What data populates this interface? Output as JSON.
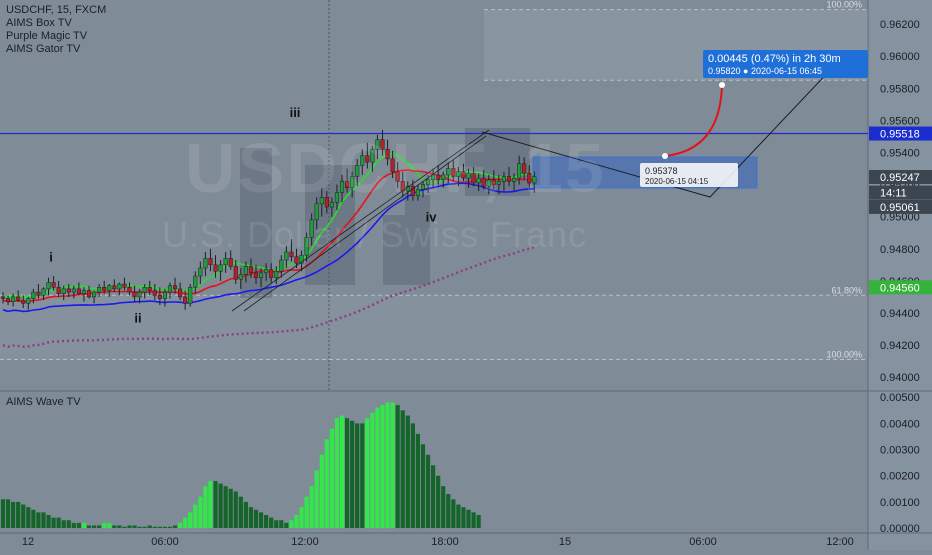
{
  "legend": {
    "symbol_line": "USDCHF, 15, FXCM",
    "indicators": [
      "AIMS Box TV",
      "Purple Magic TV",
      "AIMS Gator TV"
    ]
  },
  "watermark": {
    "symbol": "USDCHF, 15",
    "name": "U.S. Dollar / Swiss Franc"
  },
  "indicator_title": "AIMS Wave TV",
  "colors": {
    "background": "#7f8c98",
    "up_candle": "#1f9d3a",
    "down_candle": "#b61f25",
    "line_green": "#2bdc2b",
    "line_red": "#e0141a",
    "line_blue": "#1a1aef",
    "dotted_purple": "#8a3f82",
    "horizontal_line": "#1b2dcf",
    "hist_bright": "#33e64a",
    "hist_dark": "#15652a",
    "price_tag_blue": "#1f6fd8"
  },
  "chart_data": [
    {
      "type": "candlestick",
      "title": "USDCHF, 15, FXCM",
      "ylim": [
        0.9392,
        0.9635
      ],
      "y_ticks": [
        "0.96200",
        "0.96000",
        "0.95800",
        "0.95600",
        "0.95400",
        "0.95200",
        "0.95000",
        "0.94800",
        "0.94600",
        "0.94400",
        "0.94200",
        "0.94000"
      ],
      "x_ticks": [
        "12",
        "06:00",
        "12:00",
        "18:00",
        "15",
        "06:00",
        "12:00"
      ],
      "price_labels": [
        {
          "text": "0.95518",
          "value": 0.95518,
          "style": "blue-line"
        },
        {
          "text": "0.95247",
          "value": 0.95247,
          "style": "dark"
        },
        {
          "text": "14:11",
          "value": 0.9515,
          "style": "dark"
        },
        {
          "text": "0.95061",
          "value": 0.95061,
          "style": "dark"
        },
        {
          "text": "0.94560",
          "value": 0.9456,
          "style": "green"
        }
      ],
      "fib_levels": [
        {
          "label": "100.00%",
          "value": 0.9629
        },
        {
          "label": "61.80%",
          "value": 0.9585
        },
        {
          "label": "61.80%",
          "value": 0.9451
        },
        {
          "label": "100.00%",
          "value": 0.9411
        }
      ],
      "wave_labels": [
        {
          "text": "i",
          "x": 48,
          "y": 0.9472
        },
        {
          "text": "ii",
          "x": 135,
          "y": 0.9434
        },
        {
          "text": "iii",
          "x": 292,
          "y": 0.9562
        },
        {
          "text": "iv",
          "x": 428,
          "y": 0.9497
        }
      ],
      "projection_label": "0.00445 (0.47%) in 2h 30m",
      "projection_sublabel": "0.95820 ● 2020-06-15 06:45",
      "box_label": "0.95378",
      "box_sublabel": "2020-06-15 04:15",
      "horizontal_line": 0.95518,
      "crosshair_x": 329,
      "candles": [
        [
          0.945,
          0.9453,
          0.9446,
          0.9449
        ],
        [
          0.9449,
          0.9451,
          0.9445,
          0.9447
        ],
        [
          0.9447,
          0.9452,
          0.9444,
          0.945
        ],
        [
          0.945,
          0.9454,
          0.9447,
          0.9448
        ],
        [
          0.9448,
          0.9451,
          0.9443,
          0.9446
        ],
        [
          0.9446,
          0.945,
          0.9442,
          0.9449
        ],
        [
          0.9449,
          0.9455,
          0.9446,
          0.9453
        ],
        [
          0.9453,
          0.9458,
          0.9449,
          0.9451
        ],
        [
          0.9451,
          0.9456,
          0.9448,
          0.9455
        ],
        [
          0.9455,
          0.9462,
          0.9451,
          0.9459
        ],
        [
          0.9459,
          0.9463,
          0.9454,
          0.9456
        ],
        [
          0.9456,
          0.946,
          0.945,
          0.9452
        ],
        [
          0.9452,
          0.9457,
          0.9448,
          0.9455
        ],
        [
          0.9455,
          0.9458,
          0.945,
          0.9453
        ],
        [
          0.9453,
          0.9457,
          0.9449,
          0.9455
        ],
        [
          0.9455,
          0.9459,
          0.9451,
          0.9452
        ],
        [
          0.9452,
          0.9456,
          0.9447,
          0.9454
        ],
        [
          0.9454,
          0.9457,
          0.9449,
          0.945
        ],
        [
          0.945,
          0.9454,
          0.9446,
          0.9453
        ],
        [
          0.9453,
          0.9458,
          0.945,
          0.9456
        ],
        [
          0.9456,
          0.946,
          0.9452,
          0.9454
        ],
        [
          0.9454,
          0.9458,
          0.945,
          0.9457
        ],
        [
          0.9457,
          0.9461,
          0.9453,
          0.9455
        ],
        [
          0.9455,
          0.9459,
          0.9451,
          0.9458
        ],
        [
          0.9458,
          0.9462,
          0.9454,
          0.9456
        ],
        [
          0.9456,
          0.9459,
          0.9451,
          0.9453
        ],
        [
          0.9453,
          0.9457,
          0.9447,
          0.945
        ],
        [
          0.945,
          0.9455,
          0.9446,
          0.9453
        ],
        [
          0.9453,
          0.9458,
          0.9449,
          0.9456
        ],
        [
          0.9456,
          0.946,
          0.9451,
          0.9454
        ],
        [
          0.9454,
          0.9458,
          0.9448,
          0.9451
        ],
        [
          0.9451,
          0.9456,
          0.9445,
          0.9449
        ],
        [
          0.9449,
          0.9455,
          0.9444,
          0.9453
        ],
        [
          0.9453,
          0.9459,
          0.9449,
          0.9457
        ],
        [
          0.9457,
          0.9462,
          0.9452,
          0.9455
        ],
        [
          0.9455,
          0.9459,
          0.9448,
          0.945
        ],
        [
          0.945,
          0.9454,
          0.9442,
          0.9446
        ],
        [
          0.9446,
          0.9458,
          0.9444,
          0.9456
        ],
        [
          0.9456,
          0.9466,
          0.9452,
          0.9463
        ],
        [
          0.9463,
          0.9472,
          0.9458,
          0.9468
        ],
        [
          0.9468,
          0.9478,
          0.9463,
          0.9474
        ],
        [
          0.9474,
          0.948,
          0.9466,
          0.947
        ],
        [
          0.947,
          0.9476,
          0.9462,
          0.9466
        ],
        [
          0.9466,
          0.9473,
          0.946,
          0.947
        ],
        [
          0.947,
          0.9478,
          0.9465,
          0.9474
        ],
        [
          0.9474,
          0.9479,
          0.9467,
          0.9469
        ],
        [
          0.9469,
          0.9473,
          0.9458,
          0.9461
        ],
        [
          0.9461,
          0.9468,
          0.9455,
          0.9464
        ],
        [
          0.9464,
          0.9472,
          0.9459,
          0.9469
        ],
        [
          0.9469,
          0.9474,
          0.9462,
          0.9465
        ],
        [
          0.9465,
          0.947,
          0.9458,
          0.9462
        ],
        [
          0.9462,
          0.9468,
          0.9456,
          0.9465
        ],
        [
          0.9465,
          0.9471,
          0.946,
          0.9467
        ],
        [
          0.9467,
          0.9471,
          0.9459,
          0.9462
        ],
        [
          0.9462,
          0.9469,
          0.9458,
          0.9466
        ],
        [
          0.9466,
          0.9476,
          0.9462,
          0.9473
        ],
        [
          0.9473,
          0.9482,
          0.9468,
          0.9478
        ],
        [
          0.9478,
          0.9486,
          0.9472,
          0.9475
        ],
        [
          0.9475,
          0.948,
          0.9468,
          0.9471
        ],
        [
          0.9471,
          0.9479,
          0.9466,
          0.9476
        ],
        [
          0.9476,
          0.949,
          0.9472,
          0.9487
        ],
        [
          0.9487,
          0.9502,
          0.9482,
          0.9498
        ],
        [
          0.9498,
          0.9512,
          0.9492,
          0.9508
        ],
        [
          0.9508,
          0.9518,
          0.95,
          0.9512
        ],
        [
          0.9512,
          0.9516,
          0.9502,
          0.9506
        ],
        [
          0.9506,
          0.9512,
          0.95,
          0.9509
        ],
        [
          0.9509,
          0.952,
          0.9504,
          0.9515
        ],
        [
          0.9515,
          0.9526,
          0.9509,
          0.9522
        ],
        [
          0.9522,
          0.953,
          0.9515,
          0.9518
        ],
        [
          0.9518,
          0.9528,
          0.9512,
          0.9525
        ],
        [
          0.9525,
          0.9536,
          0.9519,
          0.9532
        ],
        [
          0.9532,
          0.9542,
          0.9526,
          0.9538
        ],
        [
          0.9538,
          0.9546,
          0.953,
          0.9534
        ],
        [
          0.9534,
          0.9544,
          0.9528,
          0.9542
        ],
        [
          0.9542,
          0.9551,
          0.9536,
          0.9548
        ],
        [
          0.9548,
          0.9554,
          0.9538,
          0.9542
        ],
        [
          0.9542,
          0.9548,
          0.9532,
          0.9536
        ],
        [
          0.9536,
          0.9541,
          0.9524,
          0.9528
        ],
        [
          0.9528,
          0.9534,
          0.9518,
          0.9522
        ],
        [
          0.9522,
          0.9528,
          0.9512,
          0.9516
        ],
        [
          0.9516,
          0.9522,
          0.951,
          0.9519
        ],
        [
          0.9519,
          0.9523,
          0.951,
          0.9513
        ],
        [
          0.9513,
          0.952,
          0.951,
          0.9517
        ],
        [
          0.9517,
          0.9522,
          0.9512,
          0.952
        ],
        [
          0.952,
          0.9526,
          0.9515,
          0.9523
        ],
        [
          0.9523,
          0.953,
          0.9518,
          0.9526
        ],
        [
          0.9526,
          0.9532,
          0.952,
          0.9523
        ],
        [
          0.9523,
          0.9528,
          0.9518,
          0.9526
        ],
        [
          0.9526,
          0.9534,
          0.9521,
          0.953
        ],
        [
          0.953,
          0.9535,
          0.9522,
          0.9525
        ],
        [
          0.9525,
          0.9531,
          0.9519,
          0.9528
        ],
        [
          0.9528,
          0.9533,
          0.9522,
          0.9524
        ],
        [
          0.9524,
          0.953,
          0.9518,
          0.9527
        ],
        [
          0.9527,
          0.9531,
          0.9519,
          0.9521
        ],
        [
          0.9521,
          0.9527,
          0.9516,
          0.9524
        ],
        [
          0.9524,
          0.9529,
          0.9517,
          0.9519
        ],
        [
          0.9519,
          0.9526,
          0.9514,
          0.9523
        ],
        [
          0.9523,
          0.9529,
          0.9517,
          0.952
        ],
        [
          0.952,
          0.9526,
          0.9514,
          0.9522
        ],
        [
          0.9522,
          0.9528,
          0.9516,
          0.9525
        ],
        [
          0.9525,
          0.9531,
          0.9519,
          0.9522
        ],
        [
          0.9522,
          0.9527,
          0.9516,
          0.9524
        ],
        [
          0.9524,
          0.9538,
          0.952,
          0.9533
        ],
        [
          0.9533,
          0.9537,
          0.9523,
          0.9527
        ],
        [
          0.9527,
          0.9532,
          0.9518,
          0.9521
        ],
        [
          0.9521,
          0.9528,
          0.9515,
          0.9525
        ]
      ]
    },
    {
      "type": "bar",
      "title": "AIMS Wave TV",
      "ylim": [
        -0.00015,
        0.0052
      ],
      "y_ticks": [
        "0.00500",
        "0.00400",
        "0.00300",
        "0.00200",
        "0.00100",
        "0.00000"
      ],
      "values": [
        0.0011,
        0.0011,
        0.001,
        0.001,
        0.0009,
        0.0008,
        0.0007,
        0.0006,
        0.0006,
        0.0005,
        0.0004,
        0.0004,
        0.0003,
        0.0003,
        0.0002,
        0.0002,
        0.0002,
        0.0001,
        0.0001,
        0.0001,
        0.0002,
        0.0002,
        0.0001,
        0.0001,
        5e-05,
        0.0001,
        0.0001,
        5e-05,
        5e-05,
        0.0001,
        5e-05,
        5e-05,
        5e-05,
        5e-05,
        0.0001,
        0.0002,
        0.0004,
        0.0006,
        0.0009,
        0.0012,
        0.0016,
        0.0018,
        0.0018,
        0.0017,
        0.0016,
        0.0015,
        0.0014,
        0.0012,
        0.001,
        0.0008,
        0.0007,
        0.0006,
        0.0005,
        0.0004,
        0.0003,
        0.0003,
        0.0002,
        0.0003,
        0.0005,
        0.0008,
        0.0012,
        0.0016,
        0.0022,
        0.0028,
        0.0034,
        0.0038,
        0.0042,
        0.0043,
        0.0042,
        0.0041,
        0.004,
        0.004,
        0.0042,
        0.0044,
        0.0046,
        0.0047,
        0.0048,
        0.0048,
        0.0047,
        0.0045,
        0.0043,
        0.004,
        0.0036,
        0.0032,
        0.0028,
        0.0024,
        0.002,
        0.0016,
        0.0013,
        0.0011,
        0.0009,
        0.0008,
        0.0007,
        0.0006,
        0.0005
      ],
      "bright": [
        0,
        0,
        0,
        0,
        0,
        0,
        0,
        0,
        0,
        0,
        0,
        0,
        0,
        0,
        0,
        0,
        1,
        0,
        0,
        0,
        1,
        1,
        0,
        0,
        0,
        0,
        0,
        0,
        0,
        0,
        0,
        0,
        0,
        0,
        0,
        1,
        1,
        1,
        1,
        1,
        1,
        1,
        0,
        0,
        0,
        0,
        0,
        0,
        0,
        0,
        0,
        0,
        0,
        0,
        0,
        0,
        0,
        1,
        1,
        1,
        1,
        1,
        1,
        1,
        1,
        1,
        1,
        1,
        0,
        0,
        0,
        0,
        1,
        1,
        1,
        1,
        1,
        1,
        0,
        0,
        0,
        0,
        0,
        0,
        0,
        0,
        0,
        0,
        0,
        0,
        0,
        0,
        0,
        0,
        0
      ]
    }
  ]
}
